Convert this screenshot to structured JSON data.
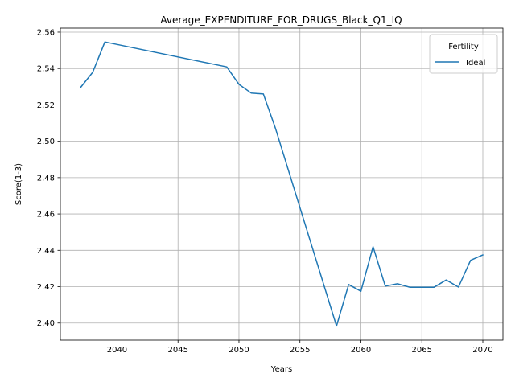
{
  "chart_data": {
    "type": "line",
    "title": "Average_EXPENDITURE_FOR_DRUGS_Black_Q1_IQ",
    "xlabel": "Years",
    "ylabel": "Score(1-3)",
    "xlim": [
      2035.35,
      2071.65
    ],
    "ylim": [
      2.3906,
      2.5622
    ],
    "xticks": [
      2040,
      2045,
      2050,
      2055,
      2060,
      2065,
      2070
    ],
    "yticks": [
      2.4,
      2.42,
      2.44,
      2.46,
      2.48,
      2.5,
      2.52,
      2.54,
      2.56
    ],
    "grid": true,
    "legend": {
      "title": "Fertility",
      "position": "top-right"
    },
    "series": [
      {
        "name": "Ideal",
        "color": "#1f77b4",
        "x": [
          2037,
          2038,
          2039,
          2049,
          2050,
          2051,
          2052,
          2053,
          2058,
          2059,
          2060,
          2061,
          2062,
          2063,
          2064,
          2065,
          2066,
          2067,
          2068,
          2069,
          2070
        ],
        "y": [
          2.5295,
          2.5379,
          2.5546,
          2.5409,
          2.5313,
          2.5265,
          2.526,
          2.507,
          2.3984,
          2.4212,
          2.4175,
          2.442,
          2.4203,
          2.4216,
          2.4197,
          2.4197,
          2.4197,
          2.4237,
          2.4198,
          2.4345,
          2.4375
        ]
      }
    ]
  }
}
